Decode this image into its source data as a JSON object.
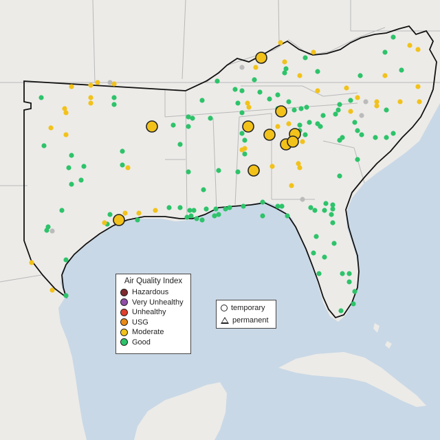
{
  "legend": {
    "title": "Air Quality Index",
    "items": [
      {
        "label": "Hazardous",
        "color": "#7e2a2f"
      },
      {
        "label": "Very Unhealthy",
        "color": "#8f4fa8"
      },
      {
        "label": "Unhealthy",
        "color": "#e0402c"
      },
      {
        "label": "USG",
        "color": "#e98a17"
      },
      {
        "label": "Moderate",
        "color": "#f2c21b"
      },
      {
        "label": "Good",
        "color": "#2ec36a"
      }
    ]
  },
  "shape_legend": {
    "temporary": "temporary",
    "permanent": "permanent"
  },
  "colors": {
    "water": "#c9d8e6",
    "land": "#ece9e6",
    "moderate": "#f2c21b",
    "good": "#2ec36a",
    "no_data": "#bbbbbb"
  }
}
